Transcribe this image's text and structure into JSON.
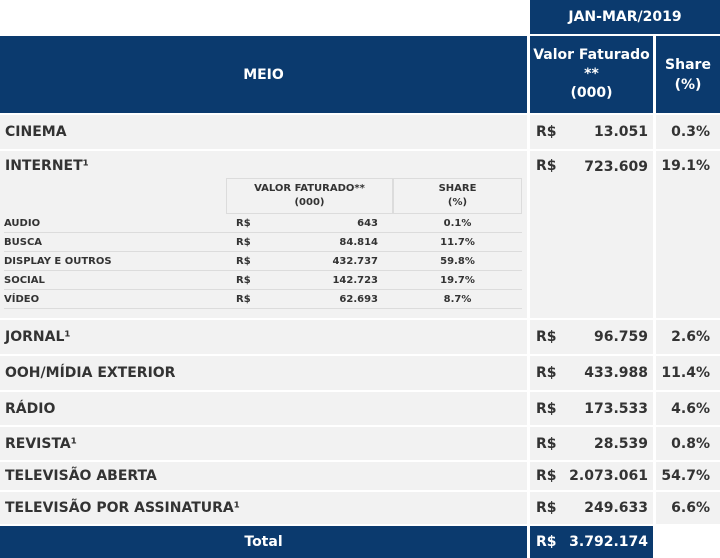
{
  "header": {
    "period": "JAN-MAR/2019",
    "meio": "MEIO",
    "valor_line1": "Valor Faturado",
    "valor_line2": "**",
    "valor_line3": "(000)",
    "share_line1": "Share",
    "share_line2": "(%)"
  },
  "rows": [
    {
      "label": "CINEMA",
      "currency": "R$",
      "value": "13.051",
      "share": "0.3%"
    },
    {
      "label": "INTERNET¹",
      "currency": "R$",
      "value": "723.609",
      "share": "19.1%"
    },
    {
      "label": "JORNAL¹",
      "currency": "R$",
      "value": "96.759",
      "share": "2.6%"
    },
    {
      "label": "OOH/MÍDIA EXTERIOR",
      "currency": "R$",
      "value": "433.988",
      "share": "11.4%"
    },
    {
      "label": "RÁDIO",
      "currency": "R$",
      "value": "173.533",
      "share": "4.6%"
    },
    {
      "label": "REVISTA¹",
      "currency": "R$",
      "value": "28.539",
      "share": "0.8%"
    },
    {
      "label": "TELEVISÃO ABERTA",
      "currency": "R$",
      "value": "2.073.061",
      "share": "54.7%"
    },
    {
      "label": "TELEVISÃO POR ASSINATURA¹",
      "currency": "R$",
      "value": "249.633",
      "share": "6.6%"
    }
  ],
  "internet_breakdown": {
    "header_valor_line1": "VALOR FATURADO**",
    "header_valor_line2": "(000)",
    "header_share_line1": "SHARE",
    "header_share_line2": "(%)",
    "items": [
      {
        "label": "AUDIO",
        "currency": "R$",
        "value": "643",
        "share": "0.1%"
      },
      {
        "label": "BUSCA",
        "currency": "R$",
        "value": "84.814",
        "share": "11.7%"
      },
      {
        "label": "DISPLAY E OUTROS",
        "currency": "R$",
        "value": "432.737",
        "share": "59.8%"
      },
      {
        "label": "SOCIAL",
        "currency": "R$",
        "value": "142.723",
        "share": "19.7%"
      },
      {
        "label": "VÍDEO",
        "currency": "R$",
        "value": "62.693",
        "share": "8.7%"
      }
    ]
  },
  "total": {
    "label": "Total",
    "currency": "R$",
    "value": "3.792.174"
  },
  "colors": {
    "navy": "#0b3a6e",
    "cell": "#f2f2f2"
  }
}
